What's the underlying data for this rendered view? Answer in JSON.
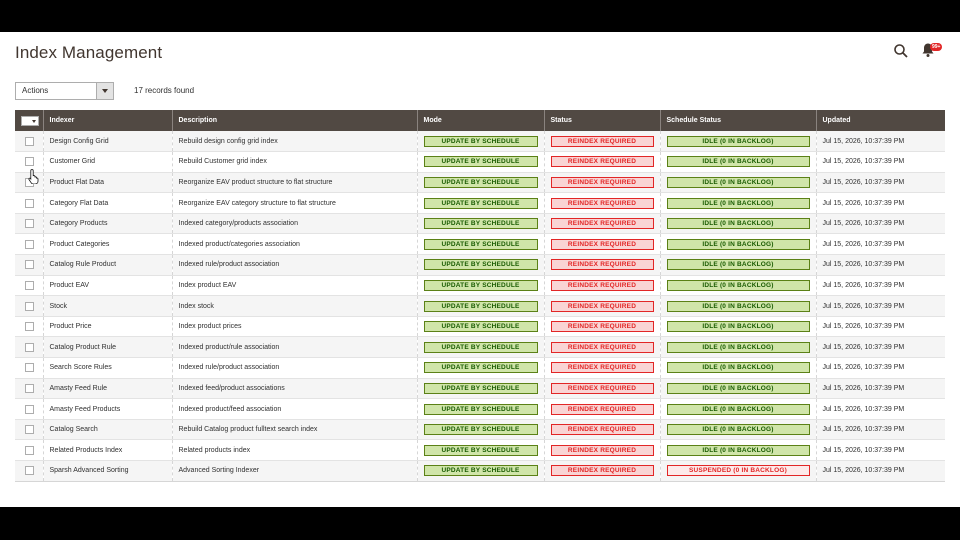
{
  "page": {
    "title": "Index Management"
  },
  "toolbar": {
    "actions_label": "Actions",
    "records_found": "17 records found",
    "notification_count": "99+"
  },
  "grid": {
    "headers": {
      "indexer": "Indexer",
      "description": "Description",
      "mode": "Mode",
      "status": "Status",
      "schedule_status": "Schedule Status",
      "updated": "Updated"
    },
    "rows": [
      {
        "indexer": "Design Config Grid",
        "description": "Rebuild design config grid index",
        "mode": "UPDATE BY SCHEDULE",
        "status": "REINDEX REQUIRED",
        "schedule_status": "IDLE (0 IN BACKLOG)",
        "updated": "Jul 15, 2026, 10:37:39 PM"
      },
      {
        "indexer": "Customer Grid",
        "description": "Rebuild Customer grid index",
        "mode": "UPDATE BY SCHEDULE",
        "status": "REINDEX REQUIRED",
        "schedule_status": "IDLE (0 IN BACKLOG)",
        "updated": "Jul 15, 2026, 10:37:39 PM"
      },
      {
        "indexer": "Product Flat Data",
        "description": "Reorganize EAV product structure to flat structure",
        "mode": "UPDATE BY SCHEDULE",
        "status": "REINDEX REQUIRED",
        "schedule_status": "IDLE (0 IN BACKLOG)",
        "updated": "Jul 15, 2026, 10:37:39 PM"
      },
      {
        "indexer": "Category Flat Data",
        "description": "Reorganize EAV category structure to flat structure",
        "mode": "UPDATE BY SCHEDULE",
        "status": "REINDEX REQUIRED",
        "schedule_status": "IDLE (0 IN BACKLOG)",
        "updated": "Jul 15, 2026, 10:37:39 PM"
      },
      {
        "indexer": "Category Products",
        "description": "Indexed category/products association",
        "mode": "UPDATE BY SCHEDULE",
        "status": "REINDEX REQUIRED",
        "schedule_status": "IDLE (0 IN BACKLOG)",
        "updated": "Jul 15, 2026, 10:37:39 PM"
      },
      {
        "indexer": "Product Categories",
        "description": "Indexed product/categories association",
        "mode": "UPDATE BY SCHEDULE",
        "status": "REINDEX REQUIRED",
        "schedule_status": "IDLE (0 IN BACKLOG)",
        "updated": "Jul 15, 2026, 10:37:39 PM"
      },
      {
        "indexer": "Catalog Rule Product",
        "description": "Indexed rule/product association",
        "mode": "UPDATE BY SCHEDULE",
        "status": "REINDEX REQUIRED",
        "schedule_status": "IDLE (0 IN BACKLOG)",
        "updated": "Jul 15, 2026, 10:37:39 PM"
      },
      {
        "indexer": "Product EAV",
        "description": "Index product EAV",
        "mode": "UPDATE BY SCHEDULE",
        "status": "REINDEX REQUIRED",
        "schedule_status": "IDLE (0 IN BACKLOG)",
        "updated": "Jul 15, 2026, 10:37:39 PM"
      },
      {
        "indexer": "Stock",
        "description": "Index stock",
        "mode": "UPDATE BY SCHEDULE",
        "status": "REINDEX REQUIRED",
        "schedule_status": "IDLE (0 IN BACKLOG)",
        "updated": "Jul 15, 2026, 10:37:39 PM"
      },
      {
        "indexer": "Product Price",
        "description": "Index product prices",
        "mode": "UPDATE BY SCHEDULE",
        "status": "REINDEX REQUIRED",
        "schedule_status": "IDLE (0 IN BACKLOG)",
        "updated": "Jul 15, 2026, 10:37:39 PM"
      },
      {
        "indexer": "Catalog Product Rule",
        "description": "Indexed product/rule association",
        "mode": "UPDATE BY SCHEDULE",
        "status": "REINDEX REQUIRED",
        "schedule_status": "IDLE (0 IN BACKLOG)",
        "updated": "Jul 15, 2026, 10:37:39 PM"
      },
      {
        "indexer": "Search Score Rules",
        "description": "Indexed rule/product association",
        "mode": "UPDATE BY SCHEDULE",
        "status": "REINDEX REQUIRED",
        "schedule_status": "IDLE (0 IN BACKLOG)",
        "updated": "Jul 15, 2026, 10:37:39 PM"
      },
      {
        "indexer": "Amasty Feed Rule",
        "description": "Indexed feed/product associations",
        "mode": "UPDATE BY SCHEDULE",
        "status": "REINDEX REQUIRED",
        "schedule_status": "IDLE (0 IN BACKLOG)",
        "updated": "Jul 15, 2026, 10:37:39 PM"
      },
      {
        "indexer": "Amasty Feed Products",
        "description": "Indexed product/feed association",
        "mode": "UPDATE BY SCHEDULE",
        "status": "REINDEX REQUIRED",
        "schedule_status": "IDLE (0 IN BACKLOG)",
        "updated": "Jul 15, 2026, 10:37:39 PM"
      },
      {
        "indexer": "Catalog Search",
        "description": "Rebuild Catalog product fulltext search index",
        "mode": "UPDATE BY SCHEDULE",
        "status": "REINDEX REQUIRED",
        "schedule_status": "IDLE (0 IN BACKLOG)",
        "updated": "Jul 15, 2026, 10:37:39 PM"
      },
      {
        "indexer": "Related Products Index",
        "description": "Related products index",
        "mode": "UPDATE BY SCHEDULE",
        "status": "REINDEX REQUIRED",
        "schedule_status": "IDLE (0 IN BACKLOG)",
        "updated": "Jul 15, 2026, 10:37:39 PM"
      },
      {
        "indexer": "Sparsh Advanced Sorting",
        "description": "Advanced Sorting Indexer",
        "mode": "UPDATE BY SCHEDULE",
        "status": "REINDEX REQUIRED",
        "schedule_status": "SUSPENDED (0 IN BACKLOG)",
        "updated": "Jul 15, 2026, 10:37:39 PM"
      }
    ]
  },
  "colors": {
    "header_bg": "#514943",
    "green": "#d0e5a9",
    "red": "#e22626"
  },
  "icons": {
    "search": "search-icon",
    "bell": "bell-icon",
    "cursor": "mouse-cursor-icon"
  }
}
